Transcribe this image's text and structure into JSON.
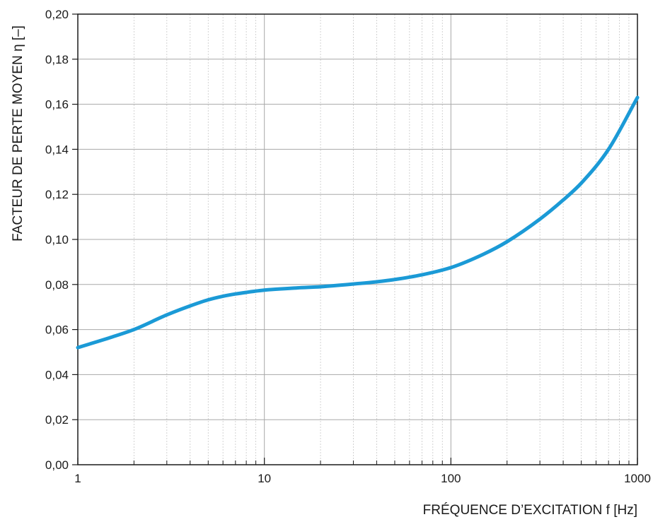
{
  "chart_data": {
    "type": "line",
    "title": "",
    "xlabel": "FRÉQUENCE D’EXCITATION f [Hz]",
    "ylabel": "FACTEUR DE PERTE MOYEN η [–]",
    "x_scale": "log",
    "xlim": [
      1,
      1000
    ],
    "ylim": [
      0,
      0.2
    ],
    "x_ticks": [
      {
        "value": 1,
        "label": "1"
      },
      {
        "value": 10,
        "label": "10"
      },
      {
        "value": 100,
        "label": "100"
      },
      {
        "value": 1000,
        "label": "1000"
      }
    ],
    "y_ticks": [
      {
        "value": 0,
        "label": "0,00"
      },
      {
        "value": 0.02,
        "label": "0,02"
      },
      {
        "value": 0.04,
        "label": "0,04"
      },
      {
        "value": 0.06,
        "label": "0,06"
      },
      {
        "value": 0.08,
        "label": "0,08"
      },
      {
        "value": 0.1,
        "label": "0,10"
      },
      {
        "value": 0.12,
        "label": "0,12"
      },
      {
        "value": 0.14,
        "label": "0,14"
      },
      {
        "value": 0.16,
        "label": "0,16"
      },
      {
        "value": 0.18,
        "label": "0,18"
      },
      {
        "value": 0.2,
        "label": "0,20"
      }
    ],
    "grid": true,
    "minor_grid": true,
    "colors": {
      "line": "#1b9ad6",
      "major_grid": "#a8a8a8",
      "minor_grid": "#c8c8c8",
      "axis": "#1a1a1a"
    },
    "series": [
      {
        "x": [
          1,
          1.5,
          2,
          3,
          4,
          5,
          6,
          7,
          8,
          10,
          15,
          20,
          30,
          40,
          50,
          70,
          100,
          150,
          200,
          300,
          400,
          500,
          700,
          1000
        ],
        "y": [
          0.052,
          0.0565,
          0.06,
          0.0665,
          0.0705,
          0.0732,
          0.0748,
          0.0758,
          0.0765,
          0.0775,
          0.0785,
          0.079,
          0.0802,
          0.0812,
          0.0822,
          0.0843,
          0.0875,
          0.0935,
          0.099,
          0.109,
          0.1175,
          0.125,
          0.14,
          0.163
        ]
      }
    ]
  }
}
